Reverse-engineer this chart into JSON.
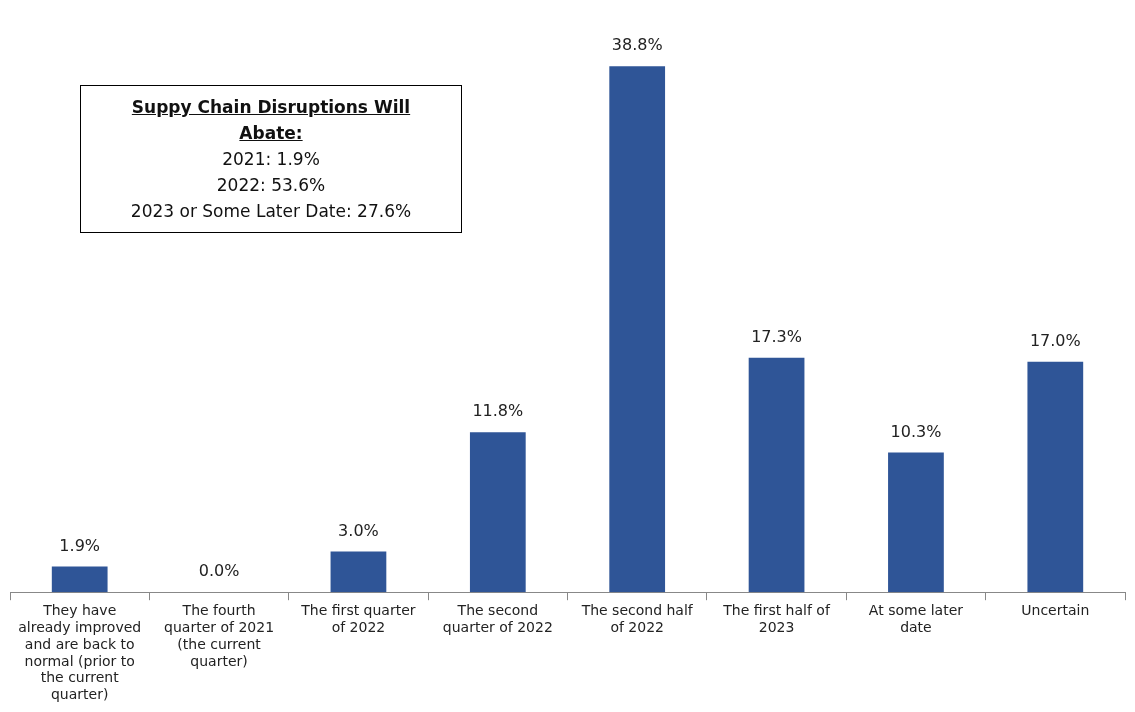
{
  "chart_data": {
    "type": "bar",
    "title": "Suppy Chain Disruptions Will Abate:",
    "annotations": [
      "2021: 1.9%",
      "2022: 53.6%",
      "2023 or Some Later Date: 27.6%"
    ],
    "categories": [
      "They have already improved and are back to normal (prior to the current quarter)",
      "The fourth quarter of 2021 (the current quarter)",
      "The first quarter of 2022",
      "The second quarter of 2022",
      "The second half of 2022",
      "The first half of 2023",
      "At some later date",
      "Uncertain"
    ],
    "values": [
      1.9,
      0.0,
      3.0,
      11.8,
      38.8,
      17.3,
      10.3,
      17.0
    ],
    "value_labels": [
      "1.9%",
      "0.0%",
      "3.0%",
      "11.8%",
      "38.8%",
      "17.3%",
      "10.3%",
      "17.0%"
    ],
    "color": "#2f5597",
    "grid": false,
    "legend": false
  }
}
